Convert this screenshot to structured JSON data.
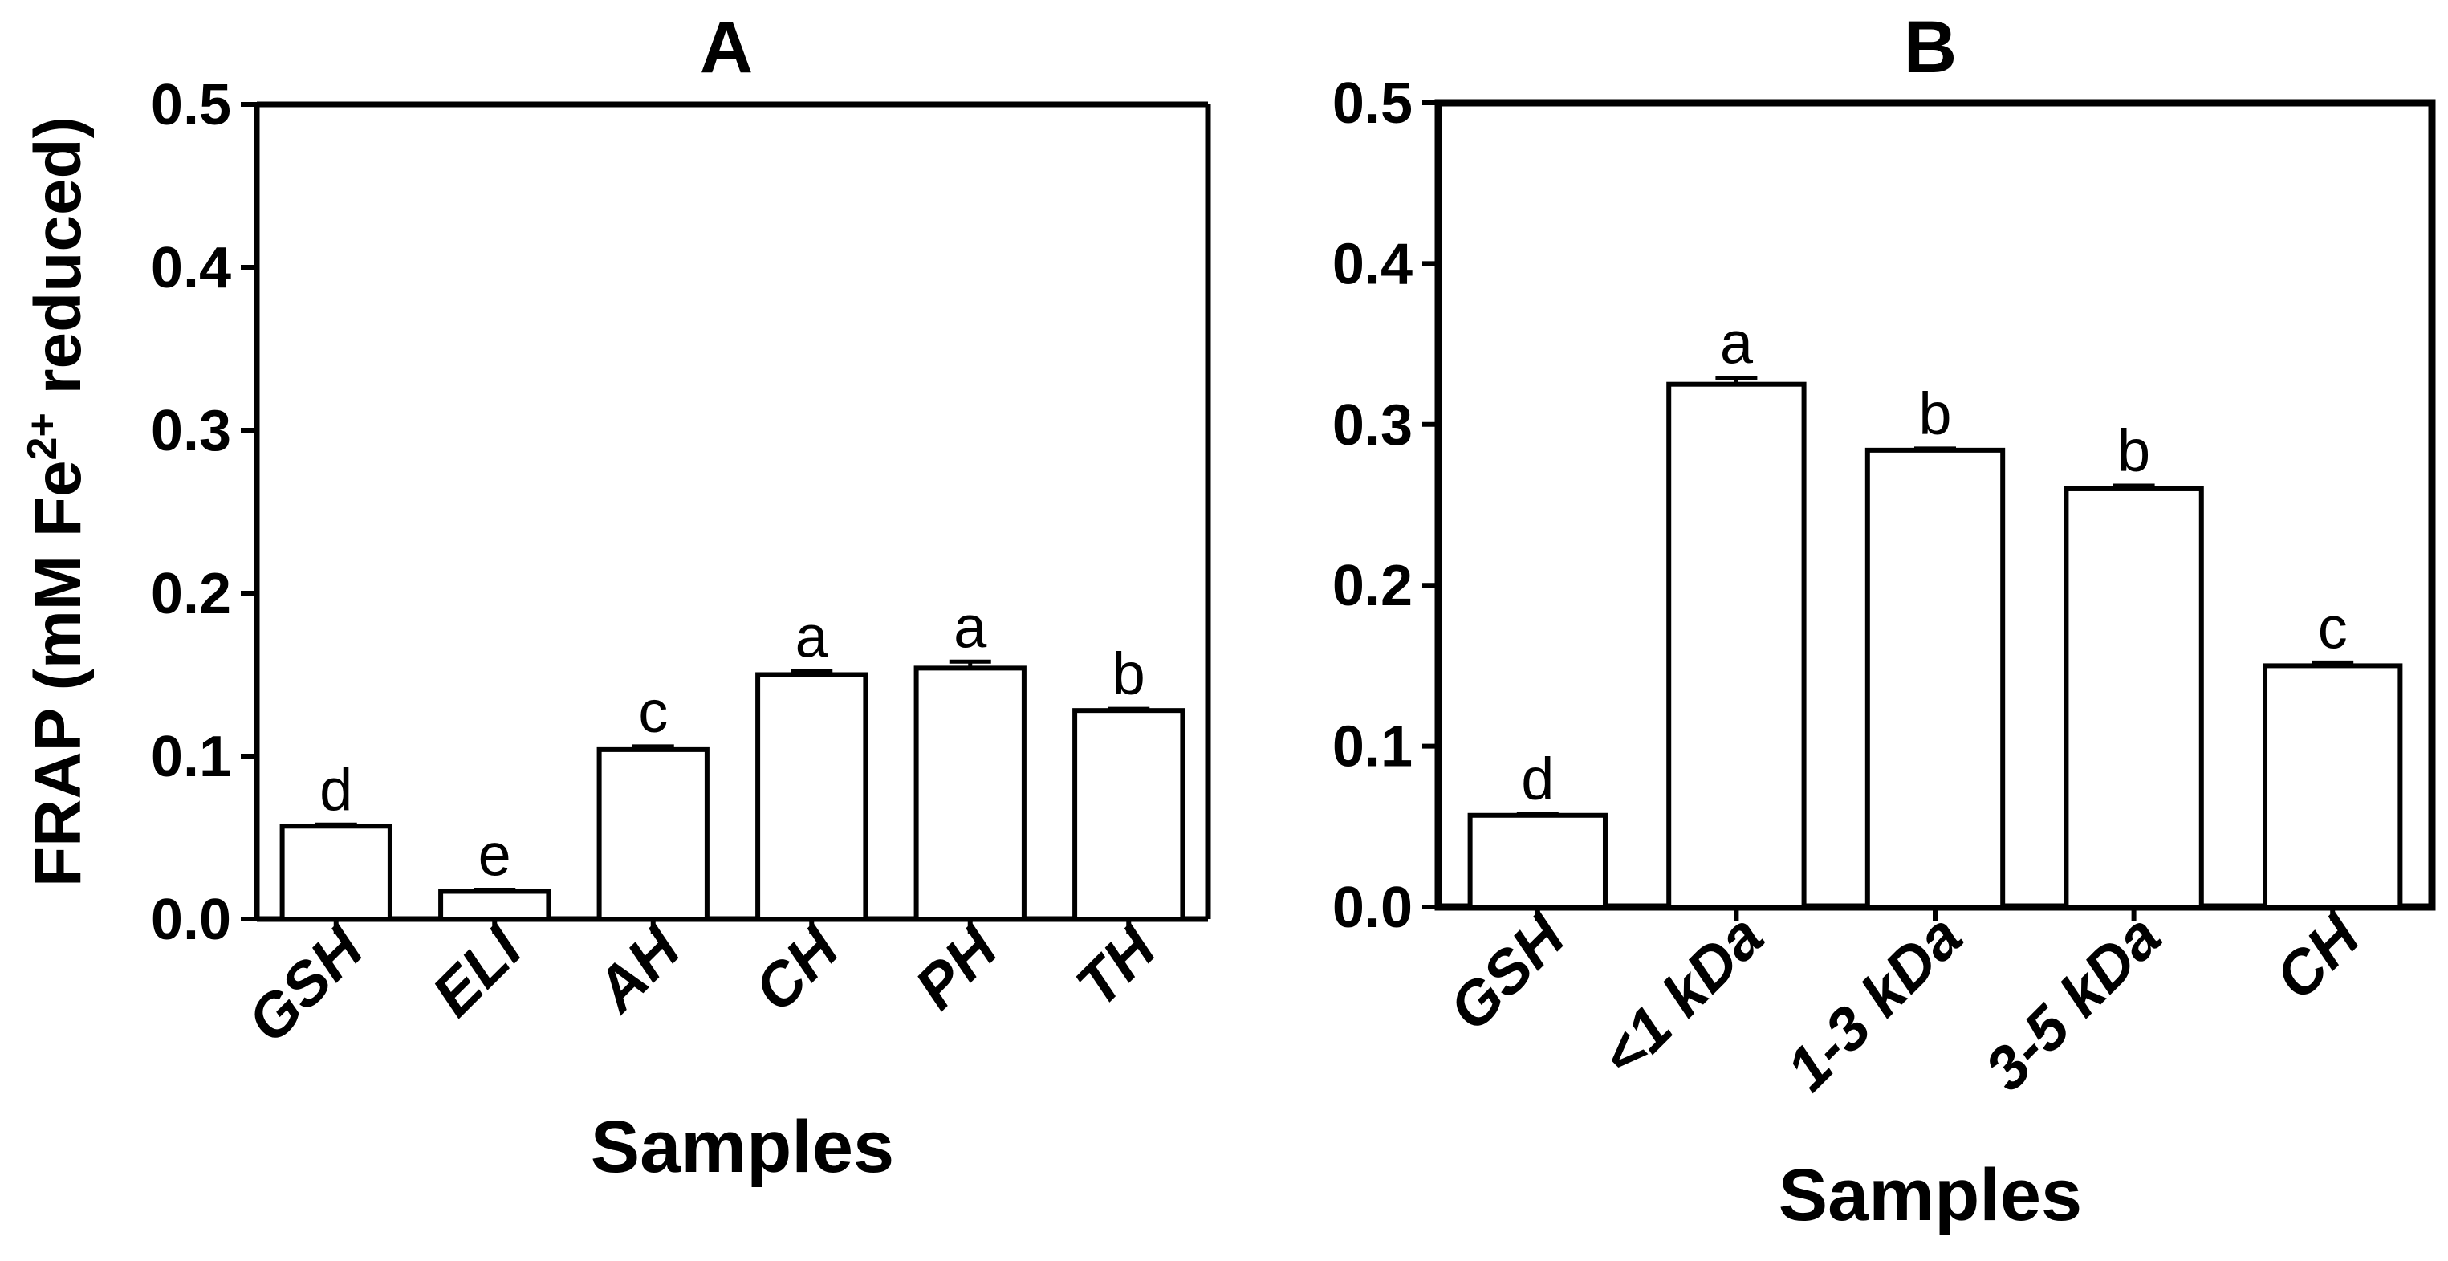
{
  "figure": {
    "ylabel_main": "FRAP (mM Fe",
    "ylabel_sup": "2+",
    "ylabel_tail": " reduced)"
  },
  "chart_data": [
    {
      "type": "bar",
      "title": "A",
      "xlabel": "Samples",
      "ylabel": "FRAP (mM Fe2+ reduced)",
      "ylim": [
        0,
        0.5
      ],
      "yticks": [
        "0.0",
        "0.1",
        "0.2",
        "0.3",
        "0.4",
        "0.5"
      ],
      "categories": [
        "GSH",
        "ELI",
        "AH",
        "CH",
        "PH",
        "TH"
      ],
      "values": [
        0.057,
        0.017,
        0.104,
        0.15,
        0.154,
        0.128
      ],
      "errors": [
        0.001,
        0.001,
        0.002,
        0.002,
        0.004,
        0.001
      ],
      "letters": [
        "d",
        "e",
        "c",
        "a",
        "a",
        "b"
      ]
    },
    {
      "type": "bar",
      "title": "B",
      "xlabel": "Samples",
      "ylabel": "",
      "ylim": [
        0,
        0.5
      ],
      "yticks": [
        "0.0",
        "0.1",
        "0.2",
        "0.3",
        "0.4",
        "0.5"
      ],
      "categories": [
        "GSH",
        "<1 kDa",
        "1-3 kDa",
        "3-5 kDa",
        "CH"
      ],
      "values": [
        0.057,
        0.325,
        0.284,
        0.26,
        0.15
      ],
      "errors": [
        0.001,
        0.004,
        0.001,
        0.002,
        0.002
      ],
      "letters": [
        "d",
        "a",
        "b",
        "b",
        "c"
      ]
    }
  ]
}
